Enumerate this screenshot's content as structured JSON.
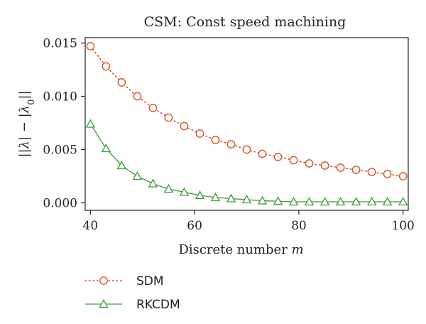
{
  "chart_data": {
    "type": "line",
    "title": "CSM: Const speed machining",
    "xlabel": "Discrete number m",
    "ylabel": "||λ| − |λ0||",
    "xlim": [
      39,
      101
    ],
    "ylim": [
      -0.0007,
      0.0155
    ],
    "x_ticks": [
      40,
      60,
      80,
      100
    ],
    "x_tick_labels": [
      "40",
      "60",
      "80",
      "100"
    ],
    "y_ticks": [
      0,
      0.005,
      0.01,
      0.015
    ],
    "y_tick_labels": [
      "0.000",
      "0.005",
      "0.010",
      "0.015"
    ],
    "grid": false,
    "legend_position": "bottom-left, below plot",
    "x": [
      40,
      43,
      46,
      49,
      52,
      55,
      58,
      61,
      64,
      67,
      70,
      73,
      76,
      79,
      82,
      85,
      88,
      91,
      94,
      97,
      100
    ],
    "series": [
      {
        "name": "SDM",
        "color": "#d9531e",
        "line_style": "dotted",
        "marker": "circle",
        "values": [
          0.0147,
          0.0128,
          0.0113,
          0.01,
          0.0089,
          0.008,
          0.0072,
          0.0065,
          0.0059,
          0.0055,
          0.005,
          0.0046,
          0.0043,
          0.004,
          0.0037,
          0.0035,
          0.0033,
          0.0031,
          0.0029,
          0.0027,
          0.0025
        ]
      },
      {
        "name": "RKCDM",
        "color": "#3a9a3a",
        "line_style": "solid",
        "marker": "triangle",
        "values": [
          0.0074,
          0.0051,
          0.0035,
          0.0025,
          0.0018,
          0.0013,
          0.001,
          0.0007,
          0.0005,
          0.0004,
          0.0003,
          0.0002,
          0.00015,
          0.0001,
          0.0001,
          0.0001,
          0.0001,
          0.0001,
          0.0001,
          0.0001,
          0.0001
        ]
      }
    ]
  }
}
